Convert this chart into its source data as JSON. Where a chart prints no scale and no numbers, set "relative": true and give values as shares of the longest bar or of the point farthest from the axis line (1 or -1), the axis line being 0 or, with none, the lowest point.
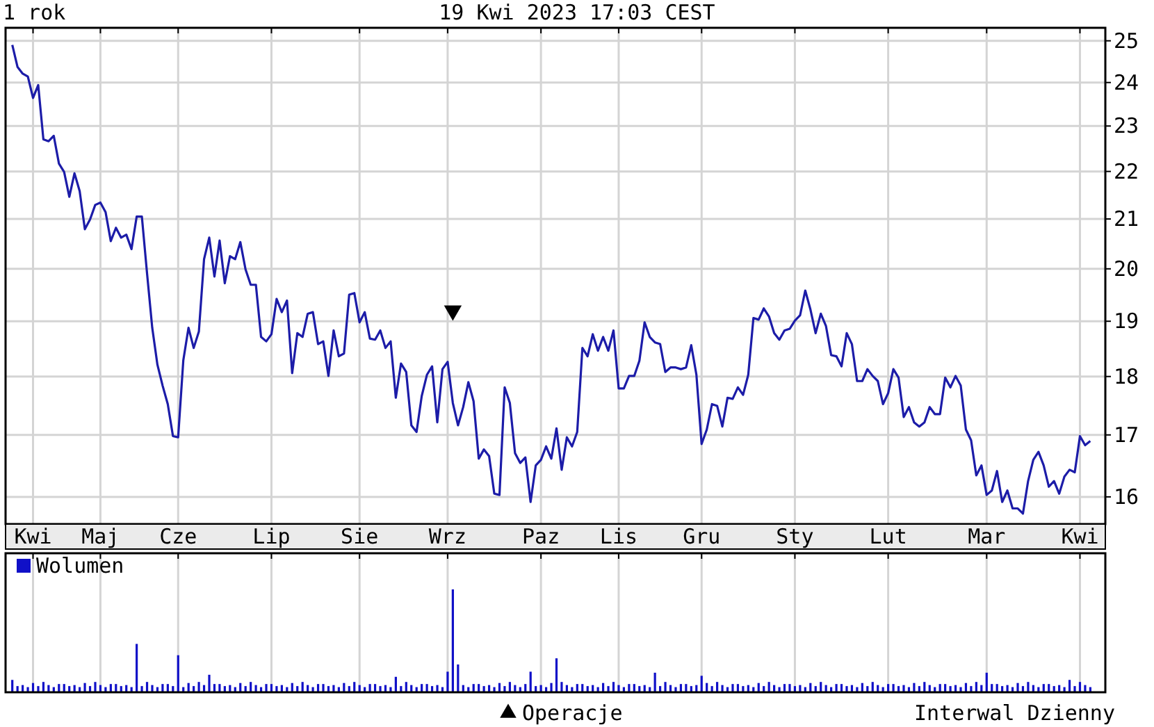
{
  "chart_data": [
    {
      "type": "line",
      "title": "1 rok",
      "subtitle": "19 Kwi 2023 17:03 CEST",
      "annotations": [
        "Interwal Dzienny"
      ],
      "log": true,
      "grid": true,
      "legend": "bottom",
      "categories": [
        null,
        null,
        null,
        null,
        "Kwi",
        null,
        null,
        null,
        null,
        null,
        null,
        null,
        null,
        null,
        null,
        null,
        null,
        "Maj",
        null,
        null,
        null,
        null,
        null,
        null,
        null,
        null,
        null,
        null,
        null,
        null,
        null,
        null,
        "Cze",
        null,
        null,
        null,
        null,
        null,
        null,
        null,
        null,
        null,
        null,
        null,
        null,
        null,
        null,
        null,
        null,
        null,
        "Lip",
        null,
        null,
        null,
        null,
        null,
        null,
        null,
        null,
        null,
        null,
        null,
        null,
        null,
        null,
        null,
        null,
        "Sie",
        null,
        null,
        null,
        null,
        null,
        null,
        null,
        null,
        null,
        null,
        null,
        null,
        null,
        null,
        null,
        null,
        "Wrz",
        null,
        null,
        null,
        null,
        null,
        null,
        null,
        null,
        null,
        null,
        null,
        null,
        null,
        null,
        null,
        null,
        null,
        "Paz",
        null,
        null,
        null,
        null,
        null,
        null,
        null,
        null,
        null,
        null,
        null,
        null,
        null,
        null,
        "Lis",
        null,
        null,
        null,
        null,
        null,
        null,
        null,
        null,
        null,
        null,
        null,
        null,
        null,
        null,
        null,
        "Gru",
        null,
        null,
        null,
        null,
        null,
        null,
        null,
        null,
        null,
        null,
        null,
        null,
        null,
        null,
        null,
        null,
        null,
        "Sty",
        null,
        null,
        null,
        null,
        null,
        null,
        null,
        null,
        null,
        null,
        null,
        null,
        null,
        null,
        null,
        null,
        null,
        "Lut",
        null,
        null,
        null,
        null,
        null,
        null,
        null,
        null,
        null,
        null,
        null,
        null,
        null,
        null,
        null,
        null,
        null,
        null,
        "Mar",
        null,
        null,
        null,
        null,
        null,
        null,
        null,
        null,
        null,
        null,
        null,
        null,
        null,
        null,
        null,
        null,
        null,
        "Kwi",
        null,
        null
      ],
      "ylim": [
        15.58,
        25.32
      ],
      "yticks": [
        16,
        17,
        18,
        19,
        20,
        21,
        22,
        23,
        24,
        25
      ],
      "series": [
        {
          "color": "#1c1ca8",
          "values": [
            24.9,
            24.37,
            24.21,
            24.14,
            23.64,
            23.94,
            22.7,
            22.66,
            22.78,
            22.17,
            21.99,
            21.46,
            21.96,
            21.58,
            20.79,
            20.99,
            21.29,
            21.34,
            21.14,
            20.55,
            20.82,
            20.62,
            20.68,
            20.39,
            21.05,
            21.05,
            19.91,
            18.88,
            18.21,
            17.84,
            17.52,
            16.98,
            16.96,
            18.29,
            18.88,
            18.51,
            18.81,
            20.19,
            20.62,
            19.85,
            20.56,
            19.72,
            20.25,
            20.19,
            20.53,
            19.99,
            19.69,
            19.69,
            18.71,
            18.63,
            18.76,
            19.42,
            19.17,
            19.39,
            18.06,
            18.78,
            18.71,
            19.14,
            19.17,
            18.58,
            18.63,
            18.01,
            18.83,
            18.36,
            18.41,
            19.5,
            19.53,
            18.98,
            19.17,
            18.68,
            18.66,
            18.83,
            18.51,
            18.63,
            17.63,
            18.23,
            18.08,
            17.16,
            17.05,
            17.66,
            18.03,
            18.18,
            17.21,
            18.13,
            18.26,
            17.54,
            17.16,
            17.47,
            17.9,
            17.57,
            16.61,
            16.76,
            16.65,
            16.05,
            16.03,
            17.81,
            17.54,
            16.7,
            16.54,
            16.63,
            15.92,
            16.5,
            16.59,
            16.81,
            16.61,
            17.11,
            16.43,
            16.96,
            16.81,
            17.05,
            18.51,
            18.36,
            18.76,
            18.46,
            18.71,
            18.46,
            18.83,
            17.79,
            17.79,
            18.01,
            18.01,
            18.28,
            18.98,
            18.71,
            18.61,
            18.58,
            18.08,
            18.16,
            18.16,
            18.13,
            18.16,
            18.56,
            18.03,
            16.85,
            17.09,
            17.52,
            17.49,
            17.14,
            17.63,
            17.61,
            17.81,
            17.68,
            18.03,
            19.06,
            19.03,
            19.24,
            19.09,
            18.78,
            18.66,
            18.83,
            18.86,
            19.01,
            19.11,
            19.58,
            19.22,
            18.78,
            19.14,
            18.91,
            18.38,
            18.36,
            18.18,
            18.78,
            18.58,
            17.92,
            17.92,
            18.13,
            18.01,
            17.92,
            17.52,
            17.71,
            18.13,
            17.98,
            17.3,
            17.47,
            17.21,
            17.14,
            17.21,
            17.47,
            17.35,
            17.35,
            17.98,
            17.81,
            18.01,
            17.84,
            17.09,
            16.91,
            16.34,
            16.5,
            16.03,
            16.1,
            16.41,
            15.92,
            16.1,
            15.82,
            15.82,
            15.74,
            16.25,
            16.59,
            16.72,
            16.5,
            16.16,
            16.25,
            16.05,
            16.32,
            16.43,
            16.39,
            16.98,
            16.83,
            16.9
          ]
        },
        {
          "type": "scatter",
          "name": "Operacje",
          "color": "#000000",
          "marker": "triangle",
          "values": [
            null,
            null,
            null,
            null,
            null,
            null,
            null,
            null,
            null,
            null,
            null,
            null,
            null,
            null,
            null,
            null,
            null,
            null,
            null,
            null,
            null,
            null,
            null,
            null,
            null,
            null,
            null,
            null,
            null,
            null,
            null,
            null,
            null,
            null,
            null,
            null,
            null,
            null,
            null,
            null,
            null,
            null,
            null,
            null,
            null,
            null,
            null,
            null,
            null,
            null,
            null,
            null,
            null,
            null,
            null,
            null,
            null,
            null,
            null,
            null,
            null,
            null,
            null,
            null,
            null,
            null,
            null,
            null,
            null,
            null,
            null,
            null,
            null,
            null,
            null,
            null,
            null,
            null,
            null,
            null,
            null,
            null,
            null,
            null,
            null,
            19.2,
            null,
            null,
            null,
            null,
            null,
            null,
            null,
            null,
            null,
            null,
            null,
            null,
            null,
            null,
            null,
            null,
            null,
            null,
            null,
            null,
            null,
            null,
            null,
            null,
            null,
            null,
            null,
            null,
            null,
            null,
            null,
            null,
            null,
            null,
            null,
            null,
            null,
            null,
            null,
            null,
            null,
            null,
            null,
            null,
            null,
            null,
            null,
            null,
            null,
            null,
            null,
            null,
            null,
            null,
            null,
            null,
            null,
            null,
            null,
            null,
            null,
            null,
            null,
            null,
            null,
            null,
            null,
            null,
            null,
            null,
            null,
            null,
            null,
            null,
            null,
            null,
            null,
            null,
            null,
            null,
            null,
            null,
            null,
            null,
            null,
            null,
            null,
            null,
            null,
            null,
            null,
            null,
            null,
            null,
            null,
            null,
            null,
            null,
            null,
            null,
            null,
            null,
            null,
            null,
            null,
            null,
            null,
            null,
            null,
            null,
            null,
            null,
            null,
            null,
            null,
            null,
            null,
            null,
            null,
            null,
            null,
            null,
            null
          ]
        }
      ]
    },
    {
      "type": "bar",
      "relative": true,
      "grid": "x",
      "legend": "top left",
      "tick_labels": false,
      "categories": [
        null,
        null,
        null,
        null,
        null,
        null,
        null,
        null,
        null,
        null,
        null,
        null,
        null,
        null,
        null,
        null,
        null,
        null,
        null,
        null,
        null,
        null,
        null,
        null,
        null,
        null,
        null,
        null,
        null,
        null,
        null,
        null,
        null,
        null,
        null,
        null,
        null,
        null,
        null,
        null,
        null,
        null,
        null,
        null,
        null,
        null,
        null,
        null,
        null,
        null,
        null,
        null,
        null,
        null,
        null,
        null,
        null,
        null,
        null,
        null,
        null,
        null,
        null,
        null,
        null,
        null,
        null,
        null,
        null,
        null,
        null,
        null,
        null,
        null,
        null,
        null,
        null,
        null,
        null,
        null,
        null,
        null,
        null,
        null,
        null,
        null,
        null,
        null,
        null,
        null,
        null,
        null,
        null,
        null,
        null,
        null,
        null,
        null,
        null,
        null,
        null,
        null,
        null,
        null,
        null,
        null,
        null,
        null,
        null,
        null,
        null,
        null,
        null,
        null,
        null,
        null,
        null,
        null,
        null,
        null,
        null,
        null,
        null,
        null,
        null,
        null,
        null,
        null,
        null,
        null,
        null,
        null,
        null,
        null,
        null,
        null,
        null,
        null,
        null,
        null,
        null,
        null,
        null,
        null,
        null,
        null,
        null,
        null,
        null,
        null,
        null,
        null,
        null,
        null,
        null,
        null,
        null,
        null,
        null,
        null,
        null,
        null,
        null,
        null,
        null,
        null,
        null,
        null,
        null,
        null,
        null,
        null,
        null,
        null,
        null,
        null,
        null,
        null,
        null,
        null,
        null,
        null,
        null,
        null,
        null,
        null,
        null,
        null,
        null,
        null,
        null,
        null,
        null,
        null,
        null,
        null,
        null,
        null,
        null,
        null,
        null,
        null,
        null,
        null,
        null,
        null,
        null,
        null,
        null
      ],
      "series": [
        {
          "name": "Wolumen",
          "color": "#1010c8",
          "values": [
            0.12,
            0.06,
            0.07,
            0.05,
            0.09,
            0.06,
            0.1,
            0.07,
            0.05,
            0.08,
            0.08,
            0.06,
            0.07,
            0.05,
            0.09,
            0.06,
            0.1,
            0.07,
            0.05,
            0.08,
            0.08,
            0.06,
            0.07,
            0.05,
            0.47,
            0.06,
            0.1,
            0.07,
            0.05,
            0.08,
            0.08,
            0.06,
            0.36,
            0.05,
            0.09,
            0.06,
            0.1,
            0.07,
            0.17,
            0.08,
            0.08,
            0.06,
            0.07,
            0.05,
            0.09,
            0.06,
            0.1,
            0.07,
            0.05,
            0.08,
            0.08,
            0.06,
            0.07,
            0.05,
            0.09,
            0.06,
            0.1,
            0.07,
            0.05,
            0.08,
            0.08,
            0.06,
            0.07,
            0.05,
            0.09,
            0.06,
            0.1,
            0.07,
            0.05,
            0.08,
            0.08,
            0.06,
            0.07,
            0.05,
            0.15,
            0.06,
            0.1,
            0.07,
            0.05,
            0.08,
            0.08,
            0.06,
            0.07,
            0.05,
            0.2,
            1,
            0.27,
            0.07,
            0.05,
            0.08,
            0.08,
            0.06,
            0.07,
            0.05,
            0.09,
            0.06,
            0.1,
            0.07,
            0.05,
            0.08,
            0.2,
            0.06,
            0.07,
            0.05,
            0.09,
            0.33,
            0.1,
            0.07,
            0.05,
            0.08,
            0.08,
            0.06,
            0.07,
            0.05,
            0.09,
            0.06,
            0.1,
            0.07,
            0.05,
            0.08,
            0.08,
            0.06,
            0.07,
            0.05,
            0.19,
            0.06,
            0.1,
            0.07,
            0.05,
            0.08,
            0.08,
            0.06,
            0.07,
            0.16,
            0.09,
            0.06,
            0.1,
            0.07,
            0.05,
            0.08,
            0.08,
            0.06,
            0.07,
            0.05,
            0.09,
            0.06,
            0.1,
            0.07,
            0.05,
            0.08,
            0.08,
            0.06,
            0.07,
            0.05,
            0.09,
            0.06,
            0.1,
            0.07,
            0.05,
            0.08,
            0.08,
            0.06,
            0.07,
            0.05,
            0.09,
            0.06,
            0.1,
            0.07,
            0.05,
            0.08,
            0.08,
            0.06,
            0.07,
            0.05,
            0.09,
            0.06,
            0.1,
            0.07,
            0.05,
            0.08,
            0.08,
            0.06,
            0.07,
            0.05,
            0.09,
            0.06,
            0.1,
            0.07,
            0.19,
            0.08,
            0.08,
            0.06,
            0.07,
            0.05,
            0.09,
            0.06,
            0.1,
            0.07,
            0.05,
            0.08,
            0.08,
            0.06,
            0.07,
            0.05,
            0.12,
            0.06,
            0.1,
            0.07,
            0.05
          ]
        }
      ]
    }
  ]
}
